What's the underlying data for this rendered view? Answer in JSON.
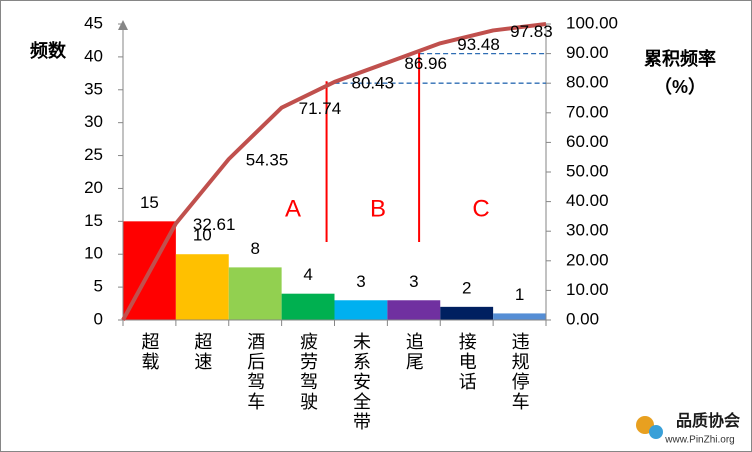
{
  "chart_data": {
    "type": "pareto",
    "ylabel": "频数",
    "y2label": [
      "累积频率",
      "（%）"
    ],
    "categories": [
      "超载",
      "超速",
      "酒后驾车",
      "疲劳驾驶",
      "未系安全带",
      "追尾",
      "接电话",
      "违规停车"
    ],
    "values": [
      15,
      10,
      8,
      4,
      3,
      3,
      2,
      1
    ],
    "colors": [
      "#ff0000",
      "#ffc000",
      "#92d050",
      "#00b050",
      "#00b0f0",
      "#7030a0",
      "#002060",
      "#558ed5"
    ],
    "cumulative": {
      "color": "#c0504d",
      "axis": "y2",
      "values": [
        0,
        32.61,
        54.35,
        71.74,
        80.43,
        86.96,
        93.48,
        97.83,
        100
      ],
      "value_labels": [
        null,
        "32.61",
        "54.35",
        "71.74",
        "80.43",
        "86.96",
        "93.48",
        "97.83",
        null
      ]
    },
    "ylim": [
      0,
      45
    ],
    "yticks": [
      0,
      5,
      10,
      15,
      20,
      25,
      30,
      35,
      40,
      45
    ],
    "y2lim": [
      0,
      100
    ],
    "y2ticks": [
      {
        "value": 0,
        "label": "0.00"
      },
      {
        "value": 10,
        "label": "10.00"
      },
      {
        "value": 20,
        "label": "20.00"
      },
      {
        "value": 30,
        "label": "30.00"
      },
      {
        "value": 40,
        "label": "40.00"
      },
      {
        "value": 50,
        "label": "50.00"
      },
      {
        "value": 60,
        "label": "60.00"
      },
      {
        "value": 70,
        "label": "70.00"
      },
      {
        "value": 80,
        "label": "80.00"
      },
      {
        "value": 90,
        "label": "90.00"
      },
      {
        "value": 100,
        "label": "100.00"
      }
    ],
    "reference_lines": [
      80,
      90
    ],
    "annotations": [
      "A",
      "B",
      "C"
    ]
  },
  "watermark": {
    "name": "品质协会",
    "url": "www.PinZhi.org"
  }
}
